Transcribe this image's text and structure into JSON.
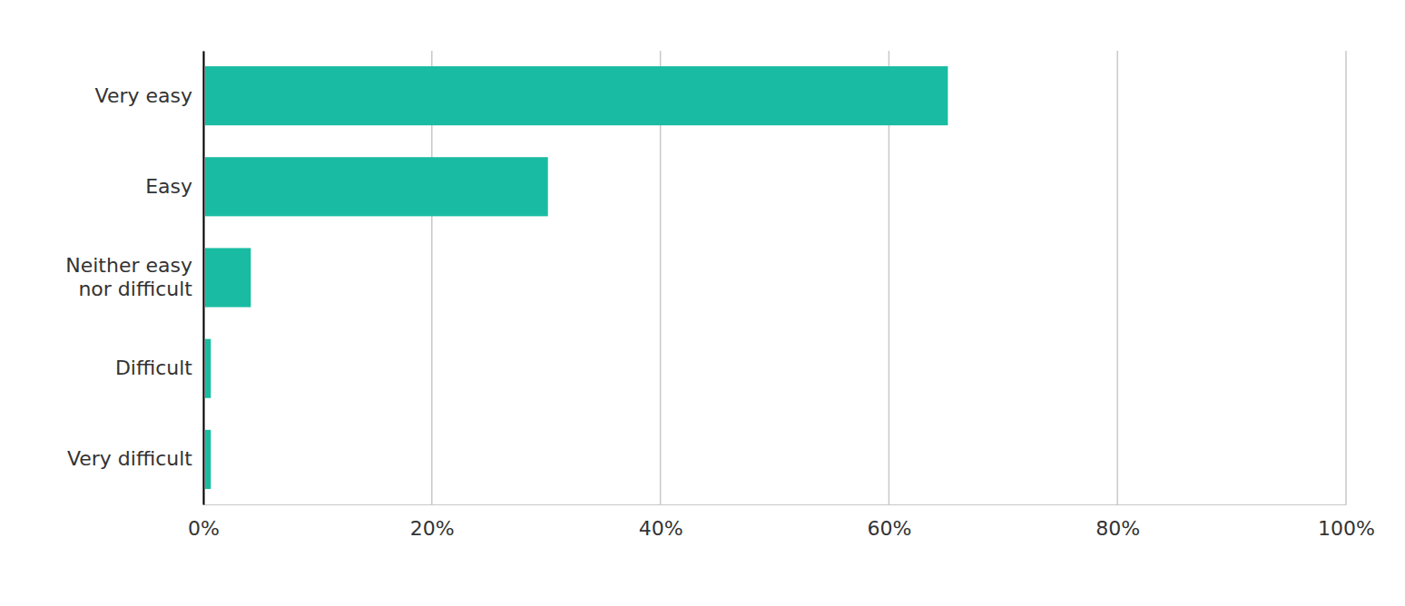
{
  "chart_data": {
    "type": "bar",
    "orientation": "horizontal",
    "categories": [
      "Very easy",
      "Easy",
      "Neither easy nor difficult",
      "Difficult",
      "Very difficult"
    ],
    "values": [
      65,
      30,
      4,
      0.5,
      0.5
    ],
    "color": "#19bca2",
    "xlim": [
      0,
      100
    ],
    "xticks": [
      {
        "value": 0,
        "label": "0%"
      },
      {
        "value": 20,
        "label": "20%"
      },
      {
        "value": 40,
        "label": "40%"
      },
      {
        "value": 60,
        "label": "60%"
      },
      {
        "value": 80,
        "label": "80%"
      },
      {
        "value": 100,
        "label": "100%"
      }
    ],
    "grid": true
  }
}
